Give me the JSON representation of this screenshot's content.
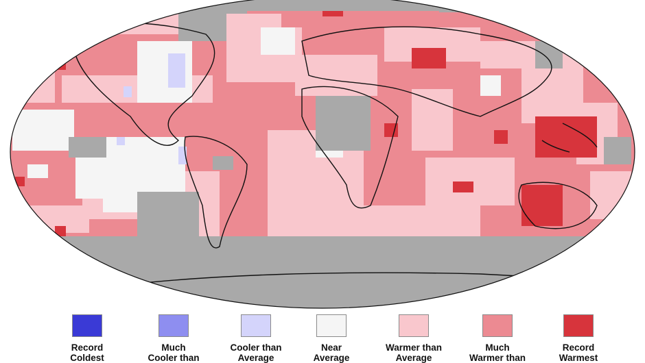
{
  "map": {
    "colors": {
      "ocean_no_data": "#a9a9a9",
      "background": "#ffffff",
      "outline": "#111111"
    }
  },
  "legend": {
    "items": [
      {
        "label_lines": [
          "Record",
          "Coldest"
        ],
        "color": "#3a3ad6"
      },
      {
        "label_lines": [
          "Much",
          "Cooler than"
        ],
        "color": "#8e8ef0"
      },
      {
        "label_lines": [
          "Cooler than",
          "Average"
        ],
        "color": "#d4d4fb"
      },
      {
        "label_lines": [
          "Near",
          "Average"
        ],
        "color": "#f5f5f5"
      },
      {
        "label_lines": [
          "Warmer than",
          "Average"
        ],
        "color": "#f9c7cd"
      },
      {
        "label_lines": [
          "Much",
          "Warmer than"
        ],
        "color": "#ec8a92"
      },
      {
        "label_lines": [
          "Record",
          "Warmest"
        ],
        "color": "#d7343c"
      }
    ]
  }
}
